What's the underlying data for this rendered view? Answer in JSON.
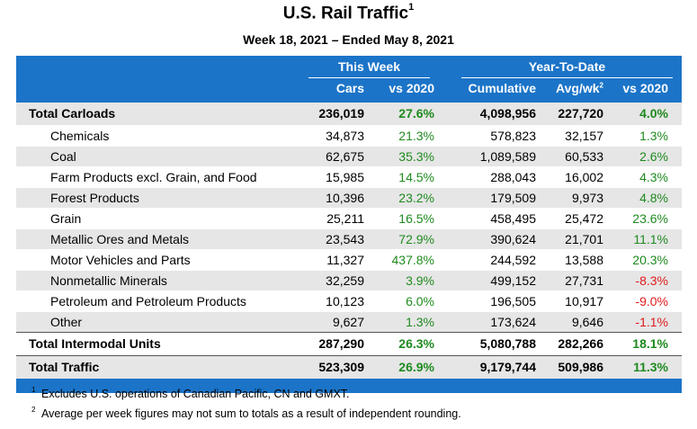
{
  "title": "U.S. Rail Traffic",
  "title_sup": "1",
  "subtitle": "Week 18, 2021 – Ended May 8, 2021",
  "header": {
    "group_this_week": "This Week",
    "group_ytd": "Year-To-Date",
    "col_cars": "Cars",
    "col_vs2020_week": "vs 2020",
    "col_cumulative": "Cumulative",
    "col_avgwk": "Avg/wk",
    "col_avgwk_sup": "2",
    "col_vs2020_ytd": "vs 2020"
  },
  "rows": [
    {
      "label": "Total Carloads",
      "cars": "236,019",
      "week_vs": "27.6%",
      "cum": "4,098,956",
      "avg": "227,720",
      "ytd_vs": "4.0%",
      "ytd_color": "green"
    },
    {
      "label": "Chemicals",
      "cars": "34,873",
      "week_vs": "21.3%",
      "cum": "578,823",
      "avg": "32,157",
      "ytd_vs": "1.3%",
      "ytd_color": "green"
    },
    {
      "label": "Coal",
      "cars": "62,675",
      "week_vs": "35.3%",
      "cum": "1,089,589",
      "avg": "60,533",
      "ytd_vs": "2.6%",
      "ytd_color": "green"
    },
    {
      "label": "Farm Products excl. Grain, and Food",
      "cars": "15,985",
      "week_vs": "14.5%",
      "cum": "288,043",
      "avg": "16,002",
      "ytd_vs": "4.3%",
      "ytd_color": "green"
    },
    {
      "label": "Forest Products",
      "cars": "10,396",
      "week_vs": "23.2%",
      "cum": "179,509",
      "avg": "9,973",
      "ytd_vs": "4.8%",
      "ytd_color": "green"
    },
    {
      "label": "Grain",
      "cars": "25,211",
      "week_vs": "16.5%",
      "cum": "458,495",
      "avg": "25,472",
      "ytd_vs": "23.6%",
      "ytd_color": "green"
    },
    {
      "label": "Metallic Ores and Metals",
      "cars": "23,543",
      "week_vs": "72.9%",
      "cum": "390,624",
      "avg": "21,701",
      "ytd_vs": "11.1%",
      "ytd_color": "green"
    },
    {
      "label": "Motor Vehicles and Parts",
      "cars": "11,327",
      "week_vs": "437.8%",
      "cum": "244,592",
      "avg": "13,588",
      "ytd_vs": "20.3%",
      "ytd_color": "green"
    },
    {
      "label": "Nonmetallic Minerals",
      "cars": "32,259",
      "week_vs": "3.9%",
      "cum": "499,152",
      "avg": "27,731",
      "ytd_vs": "-8.3%",
      "ytd_color": "red"
    },
    {
      "label": "Petroleum and Petroleum Products",
      "cars": "10,123",
      "week_vs": "6.0%",
      "cum": "196,505",
      "avg": "10,917",
      "ytd_vs": "-9.0%",
      "ytd_color": "red"
    },
    {
      "label": "Other",
      "cars": "9,627",
      "week_vs": "1.3%",
      "cum": "173,624",
      "avg": "9,646",
      "ytd_vs": "-1.1%",
      "ytd_color": "red"
    },
    {
      "label": "Total Intermodal Units",
      "cars": "287,290",
      "week_vs": "26.3%",
      "cum": "5,080,788",
      "avg": "282,266",
      "ytd_vs": "18.1%",
      "ytd_color": "green"
    },
    {
      "label": "Total Traffic",
      "cars": "523,309",
      "week_vs": "26.9%",
      "cum": "9,179,744",
      "avg": "509,986",
      "ytd_vs": "11.3%",
      "ytd_color": "green"
    }
  ],
  "notes": [
    {
      "num": "1",
      "text": "Excludes U.S. operations of Canadian Pacific, CN and GMXT."
    },
    {
      "num": "2",
      "text": "Average per week figures may not sum to totals as a result of independent rounding."
    }
  ],
  "colors": {
    "header_blue": "#1b74c8",
    "positive": "#1f8a1f",
    "negative": "#e01b1b",
    "row_shade": "#e6e6e6"
  }
}
